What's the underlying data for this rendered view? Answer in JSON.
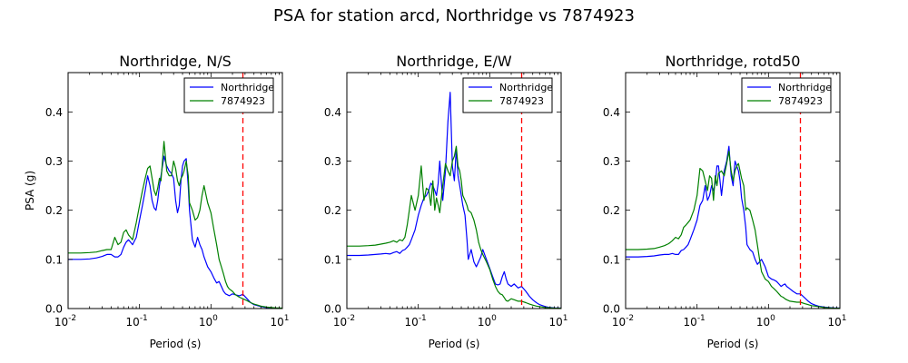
{
  "figure": {
    "suptitle": "PSA for station arcd, Northridge vs 7874923"
  },
  "colors": {
    "northridge": "#0000ff",
    "simulation": "#008000",
    "cutoff": "#ff0000"
  },
  "chart_data": [
    {
      "type": "line",
      "title": "Northridge, N/S",
      "xlabel": "Period (s)",
      "ylabel": "PSA (g)",
      "xscale": "log",
      "xlim": [
        0.01,
        10
      ],
      "ylim": [
        0,
        0.48
      ],
      "xticks": [
        {
          "value": 0.01,
          "base": "10",
          "exp": "-2"
        },
        {
          "value": 0.1,
          "base": "10",
          "exp": "-1"
        },
        {
          "value": 1,
          "base": "10",
          "exp": "0"
        },
        {
          "value": 10,
          "base": "10",
          "exp": "1"
        }
      ],
      "yticks": [
        {
          "value": 0,
          "label": "0.0"
        },
        {
          "value": 0.1,
          "label": "0.1"
        },
        {
          "value": 0.2,
          "label": "0.2"
        },
        {
          "value": 0.3,
          "label": "0.3"
        },
        {
          "value": 0.4,
          "label": "0.4"
        }
      ],
      "legend_position": "top-right",
      "cutoff_period": 2.8,
      "series": [
        {
          "name": "Northridge",
          "color_key": "northridge",
          "x": [
            0.01,
            0.015,
            0.02,
            0.025,
            0.03,
            0.035,
            0.04,
            0.045,
            0.05,
            0.055,
            0.06,
            0.065,
            0.07,
            0.075,
            0.08,
            0.09,
            0.1,
            0.11,
            0.12,
            0.13,
            0.14,
            0.15,
            0.16,
            0.17,
            0.18,
            0.19,
            0.2,
            0.22,
            0.24,
            0.26,
            0.28,
            0.3,
            0.32,
            0.34,
            0.36,
            0.38,
            0.4,
            0.42,
            0.45,
            0.48,
            0.5,
            0.55,
            0.6,
            0.65,
            0.7,
            0.75,
            0.8,
            0.9,
            1.0,
            1.1,
            1.2,
            1.3,
            1.4,
            1.5,
            1.6,
            1.7,
            1.8,
            2.0,
            2.2,
            2.5,
            2.8,
            3.2,
            3.6,
            4.0,
            4.5,
            5.0,
            6.0,
            7.0,
            8.0,
            10.0
          ],
          "y": [
            0.1,
            0.1,
            0.101,
            0.103,
            0.106,
            0.11,
            0.11,
            0.105,
            0.105,
            0.11,
            0.125,
            0.135,
            0.14,
            0.135,
            0.13,
            0.145,
            0.18,
            0.21,
            0.24,
            0.27,
            0.25,
            0.22,
            0.205,
            0.2,
            0.22,
            0.25,
            0.27,
            0.31,
            0.29,
            0.28,
            0.275,
            0.265,
            0.22,
            0.195,
            0.21,
            0.26,
            0.29,
            0.3,
            0.305,
            0.25,
            0.2,
            0.14,
            0.125,
            0.145,
            0.13,
            0.12,
            0.105,
            0.085,
            0.075,
            0.062,
            0.052,
            0.055,
            0.045,
            0.035,
            0.03,
            0.028,
            0.026,
            0.03,
            0.028,
            0.026,
            0.029,
            0.02,
            0.012,
            0.008,
            0.006,
            0.004,
            0.002,
            0.001,
            0.0008,
            0.0006
          ]
        },
        {
          "name": "7874923",
          "color_key": "simulation",
          "x": [
            0.01,
            0.015,
            0.02,
            0.025,
            0.03,
            0.035,
            0.04,
            0.045,
            0.05,
            0.055,
            0.06,
            0.065,
            0.07,
            0.075,
            0.08,
            0.09,
            0.1,
            0.11,
            0.12,
            0.13,
            0.14,
            0.15,
            0.16,
            0.17,
            0.18,
            0.19,
            0.2,
            0.22,
            0.24,
            0.26,
            0.28,
            0.3,
            0.32,
            0.34,
            0.36,
            0.38,
            0.4,
            0.42,
            0.45,
            0.48,
            0.5,
            0.55,
            0.6,
            0.65,
            0.7,
            0.75,
            0.8,
            0.9,
            1.0,
            1.1,
            1.2,
            1.3,
            1.4,
            1.5,
            1.6,
            1.7,
            1.8,
            2.0,
            2.2,
            2.5,
            2.8,
            3.2,
            3.6,
            4.0,
            4.5,
            5.0,
            6.0,
            7.0,
            8.0,
            10.0
          ],
          "y": [
            0.113,
            0.113,
            0.114,
            0.115,
            0.118,
            0.12,
            0.12,
            0.145,
            0.13,
            0.135,
            0.155,
            0.16,
            0.15,
            0.145,
            0.14,
            0.175,
            0.21,
            0.24,
            0.265,
            0.285,
            0.29,
            0.265,
            0.24,
            0.23,
            0.245,
            0.265,
            0.26,
            0.34,
            0.28,
            0.27,
            0.27,
            0.3,
            0.285,
            0.26,
            0.25,
            0.265,
            0.27,
            0.28,
            0.3,
            0.27,
            0.215,
            0.2,
            0.18,
            0.185,
            0.2,
            0.23,
            0.25,
            0.215,
            0.195,
            0.16,
            0.13,
            0.1,
            0.085,
            0.07,
            0.055,
            0.045,
            0.04,
            0.035,
            0.028,
            0.023,
            0.02,
            0.016,
            0.012,
            0.009,
            0.007,
            0.005,
            0.003,
            0.002,
            0.0015,
            0.001
          ]
        }
      ]
    },
    {
      "type": "line",
      "title": "Northridge, E/W",
      "xlabel": "Period (s)",
      "ylabel": "",
      "xscale": "log",
      "xlim": [
        0.01,
        10
      ],
      "ylim": [
        0,
        0.48
      ],
      "xticks": [
        {
          "value": 0.01,
          "base": "10",
          "exp": "-2"
        },
        {
          "value": 0.1,
          "base": "10",
          "exp": "-1"
        },
        {
          "value": 1,
          "base": "10",
          "exp": "0"
        },
        {
          "value": 10,
          "base": "10",
          "exp": "1"
        }
      ],
      "yticks": [
        {
          "value": 0,
          "label": "0.0"
        },
        {
          "value": 0.1,
          "label": "0.1"
        },
        {
          "value": 0.2,
          "label": "0.2"
        },
        {
          "value": 0.3,
          "label": "0.3"
        },
        {
          "value": 0.4,
          "label": "0.4"
        }
      ],
      "legend_position": "top-right",
      "cutoff_period": 2.8,
      "series": [
        {
          "name": "Northridge",
          "color_key": "northridge",
          "x": [
            0.01,
            0.015,
            0.02,
            0.025,
            0.03,
            0.035,
            0.04,
            0.045,
            0.05,
            0.055,
            0.06,
            0.065,
            0.07,
            0.075,
            0.08,
            0.09,
            0.1,
            0.11,
            0.12,
            0.13,
            0.14,
            0.15,
            0.16,
            0.17,
            0.18,
            0.19,
            0.2,
            0.22,
            0.24,
            0.26,
            0.28,
            0.3,
            0.32,
            0.34,
            0.36,
            0.38,
            0.4,
            0.42,
            0.45,
            0.48,
            0.5,
            0.55,
            0.6,
            0.65,
            0.7,
            0.75,
            0.8,
            0.9,
            1.0,
            1.1,
            1.2,
            1.3,
            1.4,
            1.5,
            1.6,
            1.7,
            1.8,
            2.0,
            2.2,
            2.5,
            2.8,
            3.2,
            3.6,
            4.0,
            4.5,
            5.0,
            6.0,
            7.0,
            8.0,
            10.0
          ],
          "y": [
            0.108,
            0.108,
            0.109,
            0.11,
            0.111,
            0.112,
            0.111,
            0.114,
            0.116,
            0.112,
            0.118,
            0.12,
            0.125,
            0.13,
            0.14,
            0.16,
            0.19,
            0.21,
            0.225,
            0.23,
            0.24,
            0.255,
            0.25,
            0.24,
            0.23,
            0.255,
            0.3,
            0.22,
            0.28,
            0.38,
            0.44,
            0.29,
            0.26,
            0.325,
            0.27,
            0.25,
            0.23,
            0.21,
            0.19,
            0.14,
            0.1,
            0.12,
            0.095,
            0.085,
            0.095,
            0.105,
            0.12,
            0.1,
            0.082,
            0.065,
            0.05,
            0.048,
            0.05,
            0.065,
            0.075,
            0.06,
            0.05,
            0.045,
            0.05,
            0.042,
            0.045,
            0.035,
            0.025,
            0.018,
            0.012,
            0.008,
            0.004,
            0.002,
            0.0015,
            0.001
          ]
        },
        {
          "name": "7874923",
          "color_key": "simulation",
          "x": [
            0.01,
            0.015,
            0.02,
            0.025,
            0.03,
            0.035,
            0.04,
            0.045,
            0.05,
            0.055,
            0.06,
            0.065,
            0.07,
            0.075,
            0.08,
            0.09,
            0.1,
            0.11,
            0.12,
            0.13,
            0.14,
            0.15,
            0.16,
            0.17,
            0.18,
            0.19,
            0.2,
            0.22,
            0.24,
            0.26,
            0.28,
            0.3,
            0.32,
            0.34,
            0.36,
            0.38,
            0.4,
            0.42,
            0.45,
            0.48,
            0.5,
            0.55,
            0.6,
            0.65,
            0.7,
            0.75,
            0.8,
            0.9,
            1.0,
            1.1,
            1.2,
            1.3,
            1.4,
            1.5,
            1.6,
            1.7,
            1.8,
            2.0,
            2.2,
            2.5,
            2.8,
            3.2,
            3.6,
            4.0,
            4.5,
            5.0,
            6.0,
            7.0,
            8.0,
            10.0
          ],
          "y": [
            0.127,
            0.127,
            0.128,
            0.129,
            0.131,
            0.133,
            0.135,
            0.138,
            0.135,
            0.14,
            0.138,
            0.145,
            0.17,
            0.2,
            0.23,
            0.2,
            0.23,
            0.29,
            0.22,
            0.245,
            0.24,
            0.21,
            0.26,
            0.2,
            0.225,
            0.21,
            0.195,
            0.25,
            0.295,
            0.28,
            0.27,
            0.3,
            0.31,
            0.33,
            0.29,
            0.28,
            0.26,
            0.23,
            0.22,
            0.21,
            0.2,
            0.195,
            0.18,
            0.16,
            0.135,
            0.12,
            0.11,
            0.095,
            0.08,
            0.06,
            0.045,
            0.035,
            0.03,
            0.028,
            0.022,
            0.016,
            0.015,
            0.02,
            0.018,
            0.015,
            0.015,
            0.012,
            0.009,
            0.007,
            0.005,
            0.004,
            0.002,
            0.0015,
            0.001,
            0.0008
          ]
        }
      ]
    },
    {
      "type": "line",
      "title": "Northridge, rotd50",
      "xlabel": "Period (s)",
      "ylabel": "",
      "xscale": "log",
      "xlim": [
        0.01,
        10
      ],
      "ylim": [
        0,
        0.48
      ],
      "xticks": [
        {
          "value": 0.01,
          "base": "10",
          "exp": "-2"
        },
        {
          "value": 0.1,
          "base": "10",
          "exp": "-1"
        },
        {
          "value": 1,
          "base": "10",
          "exp": "0"
        },
        {
          "value": 10,
          "base": "10",
          "exp": "1"
        }
      ],
      "yticks": [
        {
          "value": 0,
          "label": "0.0"
        },
        {
          "value": 0.1,
          "label": "0.1"
        },
        {
          "value": 0.2,
          "label": "0.2"
        },
        {
          "value": 0.3,
          "label": "0.3"
        },
        {
          "value": 0.4,
          "label": "0.4"
        }
      ],
      "legend_position": "top-right",
      "cutoff_period": 2.8,
      "series": [
        {
          "name": "Northridge",
          "color_key": "northridge",
          "x": [
            0.01,
            0.015,
            0.02,
            0.025,
            0.03,
            0.035,
            0.04,
            0.045,
            0.05,
            0.055,
            0.06,
            0.065,
            0.07,
            0.075,
            0.08,
            0.09,
            0.1,
            0.11,
            0.12,
            0.13,
            0.14,
            0.15,
            0.16,
            0.17,
            0.18,
            0.19,
            0.2,
            0.22,
            0.24,
            0.26,
            0.28,
            0.3,
            0.32,
            0.34,
            0.36,
            0.38,
            0.4,
            0.42,
            0.45,
            0.48,
            0.5,
            0.55,
            0.6,
            0.65,
            0.7,
            0.75,
            0.8,
            0.9,
            1.0,
            1.1,
            1.2,
            1.3,
            1.4,
            1.5,
            1.6,
            1.7,
            1.8,
            2.0,
            2.2,
            2.5,
            2.8,
            3.2,
            3.6,
            4.0,
            4.5,
            5.0,
            6.0,
            7.0,
            8.0,
            10.0
          ],
          "y": [
            0.105,
            0.105,
            0.106,
            0.107,
            0.109,
            0.11,
            0.11,
            0.112,
            0.11,
            0.11,
            0.118,
            0.12,
            0.125,
            0.13,
            0.14,
            0.16,
            0.18,
            0.21,
            0.22,
            0.25,
            0.22,
            0.23,
            0.25,
            0.24,
            0.255,
            0.29,
            0.29,
            0.23,
            0.28,
            0.3,
            0.33,
            0.27,
            0.25,
            0.3,
            0.29,
            0.28,
            0.26,
            0.225,
            0.2,
            0.165,
            0.13,
            0.12,
            0.115,
            0.1,
            0.09,
            0.095,
            0.1,
            0.085,
            0.065,
            0.06,
            0.058,
            0.055,
            0.05,
            0.045,
            0.048,
            0.05,
            0.045,
            0.04,
            0.035,
            0.03,
            0.03,
            0.022,
            0.015,
            0.01,
            0.007,
            0.005,
            0.003,
            0.002,
            0.0015,
            0.001
          ]
        },
        {
          "name": "7874923",
          "color_key": "simulation",
          "x": [
            0.01,
            0.015,
            0.02,
            0.025,
            0.03,
            0.035,
            0.04,
            0.045,
            0.05,
            0.055,
            0.06,
            0.065,
            0.07,
            0.075,
            0.08,
            0.09,
            0.1,
            0.11,
            0.12,
            0.13,
            0.14,
            0.15,
            0.16,
            0.17,
            0.18,
            0.19,
            0.2,
            0.22,
            0.24,
            0.26,
            0.28,
            0.3,
            0.32,
            0.34,
            0.36,
            0.38,
            0.4,
            0.42,
            0.45,
            0.48,
            0.5,
            0.55,
            0.6,
            0.65,
            0.7,
            0.75,
            0.8,
            0.9,
            1.0,
            1.1,
            1.2,
            1.3,
            1.4,
            1.5,
            1.6,
            1.7,
            1.8,
            2.0,
            2.2,
            2.5,
            2.8,
            3.2,
            3.6,
            4.0,
            4.5,
            5.0,
            6.0,
            7.0,
            8.0,
            10.0
          ],
          "y": [
            0.12,
            0.12,
            0.121,
            0.122,
            0.125,
            0.128,
            0.132,
            0.138,
            0.145,
            0.142,
            0.15,
            0.165,
            0.17,
            0.175,
            0.18,
            0.2,
            0.23,
            0.285,
            0.28,
            0.26,
            0.24,
            0.27,
            0.265,
            0.22,
            0.27,
            0.25,
            0.275,
            0.28,
            0.27,
            0.295,
            0.32,
            0.28,
            0.26,
            0.28,
            0.29,
            0.295,
            0.28,
            0.265,
            0.25,
            0.2,
            0.205,
            0.2,
            0.18,
            0.16,
            0.13,
            0.1,
            0.075,
            0.06,
            0.055,
            0.045,
            0.04,
            0.035,
            0.03,
            0.025,
            0.023,
            0.02,
            0.018,
            0.015,
            0.014,
            0.013,
            0.013,
            0.01,
            0.008,
            0.006,
            0.005,
            0.004,
            0.002,
            0.0015,
            0.001,
            0.0008
          ]
        }
      ]
    }
  ]
}
